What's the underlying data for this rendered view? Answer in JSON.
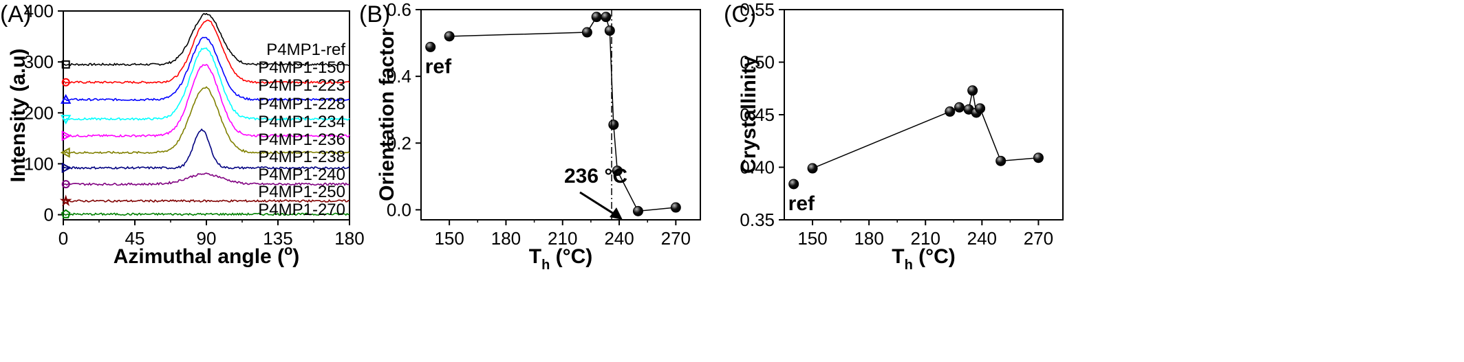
{
  "chart_data": [
    {
      "panel": "(A)",
      "type": "line",
      "xlabel": "Azimuthal angle (",
      "xlabel_sup": "o",
      "xlabel_end": ")",
      "ylabel": "Intensity (a.u)",
      "xlim": [
        0,
        180
      ],
      "ylim": [
        -10,
        400
      ],
      "xticks": [
        0,
        45,
        90,
        135,
        180
      ],
      "yticks": [
        0,
        100,
        200,
        300,
        400
      ],
      "grid": false,
      "series": [
        {
          "name": "P4MP1-ref",
          "color": "#000000",
          "marker": "square",
          "baseline": 295,
          "peak_height": 100,
          "peak_x": 90,
          "width": 9
        },
        {
          "name": "P4MP1-150",
          "color": "#ff0000",
          "marker": "circle",
          "baseline": 260,
          "peak_height": 122,
          "peak_x": 90.5,
          "width": 9
        },
        {
          "name": "P4MP1-223",
          "color": "#0000ff",
          "marker": "triangle-up",
          "baseline": 226,
          "peak_height": 122,
          "peak_x": 89,
          "width": 9
        },
        {
          "name": "P4MP1-228",
          "color": "#00ffff",
          "marker": "triangle-down",
          "baseline": 188,
          "peak_height": 140,
          "peak_x": 89,
          "width": 9
        },
        {
          "name": "P4MP1-234",
          "color": "#ff00ff",
          "marker": "triangle-right",
          "baseline": 155,
          "peak_height": 140,
          "peak_x": 89,
          "width": 9
        },
        {
          "name": "P4MP1-236",
          "color": "#808000",
          "marker": "triangle-left",
          "baseline": 122,
          "peak_height": 128,
          "peak_x": 89,
          "width": 9
        },
        {
          "name": "P4MP1-238",
          "color": "#000080",
          "marker": "triangle-right",
          "baseline": 92,
          "peak_height": 75,
          "peak_x": 87,
          "width": 5
        },
        {
          "name": "P4MP1-240",
          "color": "#800080",
          "marker": "circle",
          "baseline": 60,
          "peak_height": 20,
          "peak_x": 89,
          "width": 11
        },
        {
          "name": "P4MP1-250",
          "color": "#800000",
          "marker": "star",
          "baseline": 27,
          "peak_height": 0,
          "peak_x": 90,
          "width": 10
        },
        {
          "name": "P4MP1-270",
          "color": "#008000",
          "marker": "pentagon",
          "baseline": 1,
          "peak_height": 0,
          "peak_x": 90,
          "width": 10
        }
      ]
    },
    {
      "panel": "(B)",
      "type": "line",
      "xlabel": "T",
      "xlabel_sub": "h",
      "xlabel_end": " (°C)",
      "ylabel": "Orientation factor",
      "xlim": [
        135,
        283
      ],
      "ylim": [
        -0.03,
        0.6
      ],
      "xticks": [
        150,
        180,
        210,
        240,
        270
      ],
      "yticks": [
        0.0,
        0.2,
        0.4,
        0.6
      ],
      "grid": false,
      "ref_point": {
        "label": "ref",
        "x": 140,
        "y": 0.488
      },
      "series": [
        {
          "x": [
            150,
            223,
            228,
            233,
            235,
            237,
            239,
            250,
            270
          ],
          "y": [
            0.52,
            0.532,
            0.578,
            0.578,
            0.537,
            0.255,
            0.117,
            -0.004,
            0.007
          ]
        }
      ],
      "vline_x": 236,
      "annotation": "236 °C"
    },
    {
      "panel": "(C)",
      "type": "line",
      "xlabel": "T",
      "xlabel_sub": "h",
      "xlabel_end": " (°C)",
      "ylabel": "Crystallinity",
      "xlim": [
        135,
        283
      ],
      "ylim": [
        0.35,
        0.55
      ],
      "xticks": [
        150,
        180,
        210,
        240,
        270
      ],
      "yticks": [
        0.35,
        0.4,
        0.45,
        0.5,
        0.55
      ],
      "ytick_labels": [
        "0.35",
        "0.40",
        "0.45",
        "0.50",
        "0.55"
      ],
      "grid": false,
      "ref_point": {
        "label": "ref",
        "x": 140,
        "y": 0.384
      },
      "series": [
        {
          "x": [
            150,
            223,
            228,
            233,
            235,
            237,
            239,
            250,
            270
          ],
          "y": [
            0.399,
            0.453,
            0.457,
            0.455,
            0.473,
            0.452,
            0.456,
            0.406,
            0.409
          ]
        }
      ]
    }
  ]
}
